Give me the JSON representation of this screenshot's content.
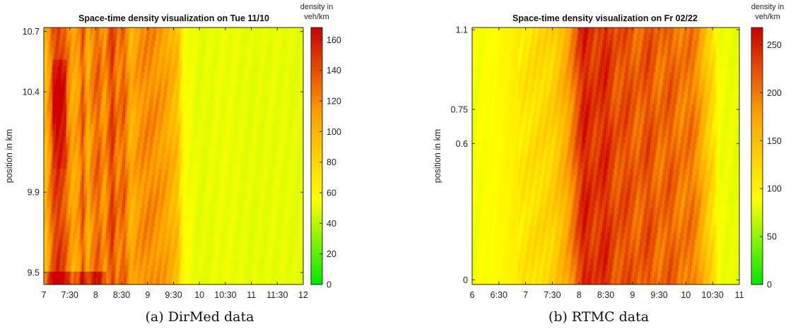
{
  "chart_data": [
    {
      "type": "heatmap",
      "title": "Space-time density visualization on Tue 11/10",
      "ylabel": "position in km",
      "colorbar_label": [
        "density in",
        "veh/km"
      ],
      "x_ticks": [
        {
          "value": 7,
          "label": "7"
        },
        {
          "value": 7.5,
          "label": "7:30"
        },
        {
          "value": 8,
          "label": "8"
        },
        {
          "value": 8.5,
          "label": "8:30"
        },
        {
          "value": 9,
          "label": "9"
        },
        {
          "value": 9.5,
          "label": "9:30"
        },
        {
          "value": 10,
          "label": "10"
        },
        {
          "value": 10.5,
          "label": "10:30"
        },
        {
          "value": 11,
          "label": "11"
        },
        {
          "value": 11.5,
          "label": "11:30"
        },
        {
          "value": 12,
          "label": "12"
        }
      ],
      "y_ticks": [
        {
          "value": 9.5,
          "label": "9.5"
        },
        {
          "value": 9.9,
          "label": "9.9"
        },
        {
          "value": 10.4,
          "label": "10.4"
        },
        {
          "value": 10.7,
          "label": "10.7"
        }
      ],
      "colorbar_ticks": [
        0,
        20,
        40,
        60,
        80,
        100,
        120,
        140,
        160
      ],
      "xlim": [
        7,
        12
      ],
      "ylim": [
        9.44,
        10.72
      ],
      "clim": [
        0,
        168
      ],
      "colormap": [
        "#00e800",
        "#ffff00",
        "#ff9f00",
        "#cc0000"
      ],
      "time_density": {
        "time": [
          7.0,
          7.12,
          7.18,
          7.28,
          7.42,
          7.55,
          7.67,
          7.75,
          7.85,
          7.92,
          8.05,
          8.17,
          8.32,
          8.42,
          8.55,
          8.68,
          8.8,
          8.92,
          9.05,
          9.2,
          9.35,
          9.47,
          9.58,
          9.62,
          9.7,
          10.0,
          10.5,
          11.0,
          11.5,
          12.0
        ],
        "density": [
          85,
          120,
          140,
          150,
          135,
          105,
          110,
          140,
          100,
          120,
          135,
          110,
          150,
          120,
          135,
          100,
          112,
          118,
          120,
          115,
          110,
          100,
          95,
          80,
          56,
          50,
          52,
          50,
          51,
          50
        ]
      }
    },
    {
      "type": "heatmap",
      "title": "Space-time density visualization on Fr 02/22",
      "ylabel": "position in km",
      "colorbar_label": [
        "density in",
        "veh/km"
      ],
      "x_ticks": [
        {
          "value": 6,
          "label": "6"
        },
        {
          "value": 6.5,
          "label": "6:30"
        },
        {
          "value": 7,
          "label": "7"
        },
        {
          "value": 7.5,
          "label": "7:30"
        },
        {
          "value": 8,
          "label": "8"
        },
        {
          "value": 8.5,
          "label": "8:30"
        },
        {
          "value": 9,
          "label": "9"
        },
        {
          "value": 9.5,
          "label": "9:30"
        },
        {
          "value": 10,
          "label": "10"
        },
        {
          "value": 10.5,
          "label": "10:30"
        },
        {
          "value": 11,
          "label": "11"
        }
      ],
      "y_ticks": [
        {
          "value": 0,
          "label": "0"
        },
        {
          "value": 0.6,
          "label": "0.6"
        },
        {
          "value": 0.75,
          "label": "0.75"
        },
        {
          "value": 1.1,
          "label": "1.1"
        }
      ],
      "colorbar_ticks": [
        0,
        50,
        100,
        150,
        200,
        250
      ],
      "xlim": [
        6,
        11
      ],
      "ylim": [
        -0.02,
        1.11
      ],
      "clim": [
        0,
        268
      ],
      "colormap": [
        "#00e800",
        "#ffff00",
        "#ff9f00",
        "#cc0000"
      ],
      "time_density": {
        "time": [
          6.0,
          6.4,
          6.8,
          7.2,
          7.5,
          7.65,
          7.8,
          7.95,
          8.1,
          8.3,
          8.5,
          8.7,
          8.9,
          9.1,
          9.3,
          9.5,
          9.7,
          9.9,
          10.1,
          10.25,
          10.4,
          10.52,
          10.62,
          11.0
        ],
        "density": [
          85,
          90,
          105,
          120,
          130,
          150,
          175,
          215,
          255,
          230,
          250,
          215,
          230,
          205,
          230,
          200,
          220,
          195,
          205,
          180,
          140,
          120,
          85,
          80
        ]
      }
    }
  ],
  "captions": {
    "a": "(a) DirMed data",
    "b": "(b) RTMC data"
  }
}
